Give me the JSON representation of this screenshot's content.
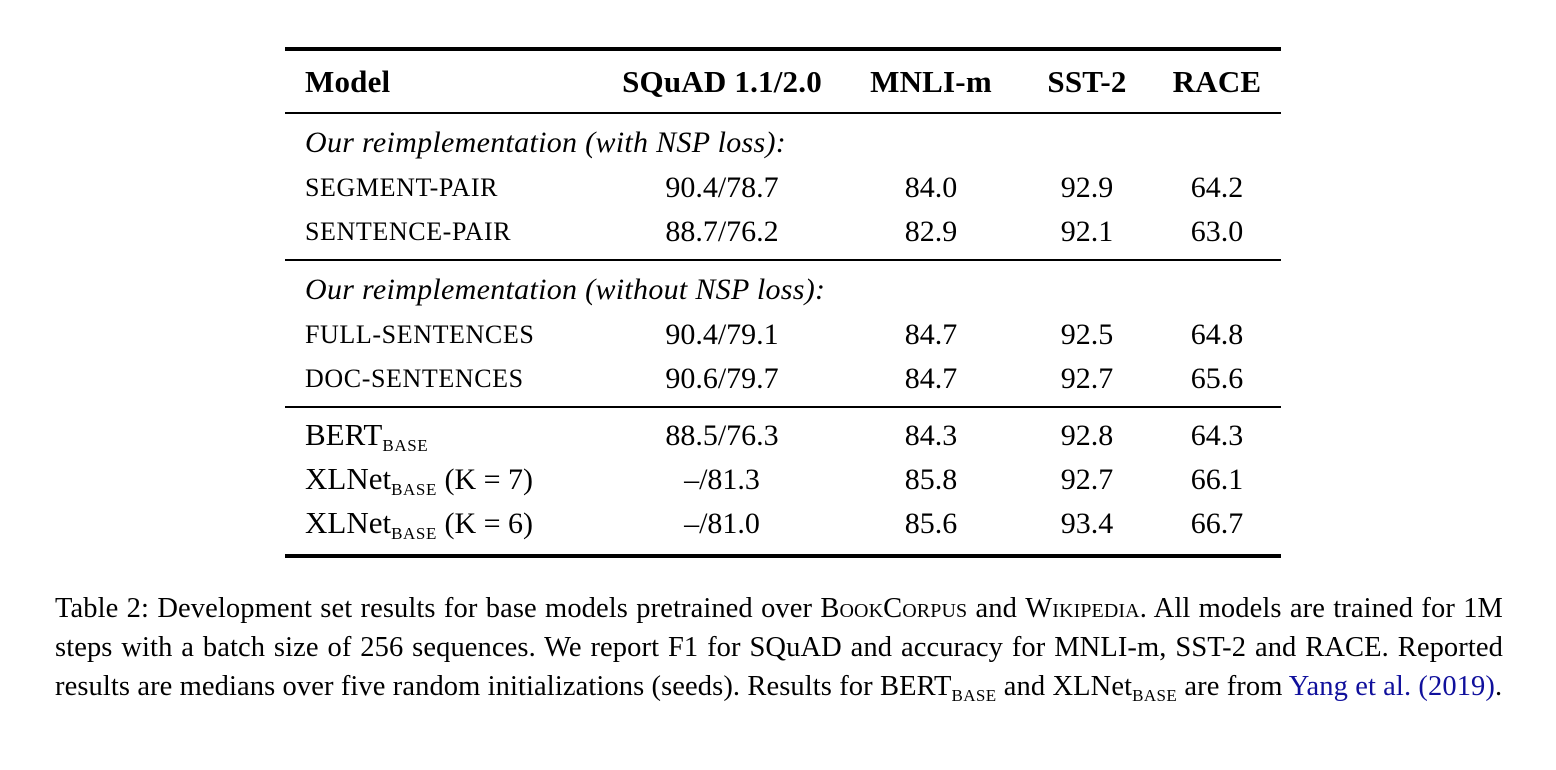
{
  "colors": {
    "background": "#ffffff",
    "text": "#000000",
    "citation_link": "#10109c"
  },
  "table": {
    "columns": [
      "Model",
      "SQuAD 1.1/2.0",
      "MNLI-m",
      "SST-2",
      "RACE"
    ],
    "sections": [
      {
        "header": "Our reimplementation (with NSP loss):",
        "rows": [
          {
            "model": "SEGMENT-PAIR",
            "squad": "90.4/78.7",
            "mnli": "84.0",
            "sst2": "92.9",
            "race": "64.2"
          },
          {
            "model": "SENTENCE-PAIR",
            "squad": "88.7/76.2",
            "mnli": "82.9",
            "sst2": "92.1",
            "race": "63.0"
          }
        ]
      },
      {
        "header": "Our reimplementation (without NSP loss):",
        "rows": [
          {
            "model": "FULL-SENTENCES",
            "squad": "90.4/79.1",
            "mnli": "84.7",
            "sst2": "92.5",
            "race": "64.8"
          },
          {
            "model": "DOC-SENTENCES",
            "squad": "90.6/79.7",
            "mnli": "84.7",
            "sst2": "92.7",
            "race": "65.6"
          }
        ]
      },
      {
        "rows": [
          {
            "model_base": "BERT",
            "model_sub": "BASE",
            "model_suffix": "",
            "squad": "88.5/76.3",
            "mnli": "84.3",
            "sst2": "92.8",
            "race": "64.3"
          },
          {
            "model_base": "XLNet",
            "model_sub": "BASE",
            "model_suffix": " (K = 7)",
            "squad": "–/81.3",
            "mnli": "85.8",
            "sst2": "92.7",
            "race": "66.1"
          },
          {
            "model_base": "XLNet",
            "model_sub": "BASE",
            "model_suffix": " (K = 6)",
            "squad": "–/81.0",
            "mnli": "85.6",
            "sst2": "93.4",
            "race": "66.7"
          }
        ]
      }
    ]
  },
  "caption": {
    "lead": "Table 2: Development set results for base models pretrained over ",
    "corpus1": "BookCorpus",
    "mid1": " and ",
    "corpus2": "Wikipedia",
    "body": ". All models are trained for 1M steps with a batch size of 256 sequences. We report F1 for SQuAD and accuracy for MNLI-m, SST-2 and RACE. Reported results are medians over five random initializations (seeds). Results for BERT",
    "sub1": "BASE",
    "mid2": " and XLNet",
    "sub2": "BASE",
    "mid3": " are from ",
    "citation": "Yang et al. (2019)",
    "end": "."
  }
}
